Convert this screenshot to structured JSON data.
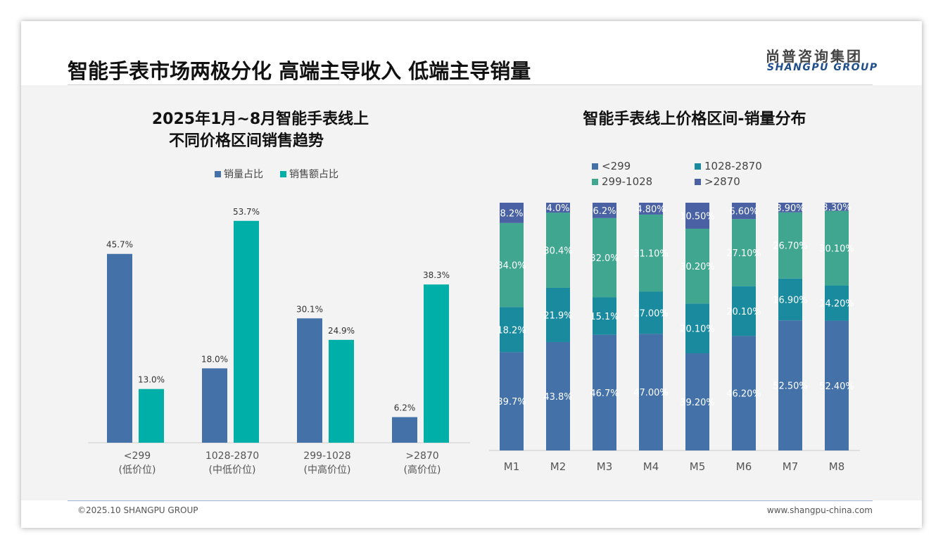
{
  "header": {
    "title": "智能手表市场两极分化 高端主导收入 低端主导销量",
    "logo_cn": "尚普咨询集团",
    "logo_en": "SHANGPU GROUP"
  },
  "footer": {
    "copyright": "©2025.10 SHANGPU GROUP",
    "url": "www.shangpu-china.com"
  },
  "colors": {
    "blue": "#4472a8",
    "teal": "#00b0a8",
    "s_lt299": "#4472a8",
    "s_1028": "#1a8a9f",
    "s_299": "#40a690",
    "s_gt2870": "#4a62a3"
  },
  "chart_data": [
    {
      "type": "bar",
      "title_lines": [
        "2025年1月~8月智能手表线上",
        "不同价格区间销售趋势"
      ],
      "categories": [
        [
          "<299",
          "(低价位)"
        ],
        [
          "1028-2870",
          "(中低价位)"
        ],
        [
          "299-1028",
          "(中高价位)"
        ],
        [
          ">2870",
          "(高价位)"
        ]
      ],
      "series": [
        {
          "name": "销量占比",
          "values": [
            45.7,
            18.0,
            30.1,
            6.2
          ],
          "labels": [
            "45.7%",
            "18.0%",
            "30.1%",
            "6.2%"
          ]
        },
        {
          "name": "销售额占比",
          "values": [
            13.0,
            53.7,
            24.9,
            38.3
          ],
          "labels": [
            "13.0%",
            "53.7%",
            "24.9%",
            "38.3%"
          ]
        }
      ],
      "ylim": [
        0,
        60
      ],
      "legend": "top"
    },
    {
      "type": "bar",
      "stacked": true,
      "title": "智能手表线上价格区间-销量分布",
      "categories": [
        "M1",
        "M2",
        "M3",
        "M4",
        "M5",
        "M6",
        "M7",
        "M8"
      ],
      "legend_order": [
        "<299",
        "1028-2870",
        "299-1028",
        ">2870"
      ],
      "series": [
        {
          "name": "<299",
          "values": [
            39.7,
            43.8,
            46.7,
            47.0,
            39.2,
            46.2,
            52.5,
            52.4
          ],
          "labels": [
            "39.7%",
            "43.8%",
            "46.7%",
            "47.00%",
            "39.20%",
            "46.20%",
            "52.50%",
            "52.40%"
          ]
        },
        {
          "name": "1028-2870",
          "values": [
            18.2,
            21.9,
            15.1,
            17.0,
            20.1,
            20.1,
            16.9,
            14.2
          ],
          "labels": [
            "18.2%",
            "21.9%",
            "15.1%",
            "17.00%",
            "20.10%",
            "20.10%",
            "16.90%",
            "14.20%"
          ]
        },
        {
          "name": "299-1028",
          "values": [
            34.0,
            30.4,
            32.0,
            31.1,
            30.2,
            27.1,
            26.7,
            30.1
          ],
          "labels": [
            "34.0%",
            "30.4%",
            "32.0%",
            "31.10%",
            "30.20%",
            "27.10%",
            "26.70%",
            "30.10%"
          ]
        },
        {
          "name": ">2870",
          "values": [
            8.2,
            4.0,
            6.2,
            4.8,
            10.5,
            6.6,
            3.9,
            3.3
          ],
          "labels": [
            "8.2%",
            "4.0%",
            "6.2%",
            "4.80%",
            "10.50%",
            "6.60%",
            "3.90%",
            "3.30%"
          ]
        }
      ],
      "ylim": [
        0,
        100
      ],
      "legend": "top"
    }
  ]
}
